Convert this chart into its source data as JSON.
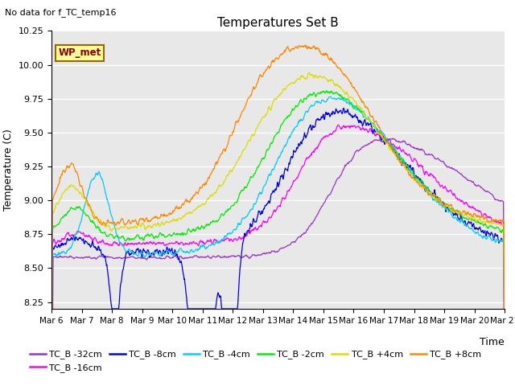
{
  "title": "Temperatures Set B",
  "subtitle": "No data for f_TC_temp16",
  "xlabel": "Time",
  "ylabel": "Temperature (C)",
  "ylim": [
    8.2,
    10.25
  ],
  "legend_box_label": "WP_met",
  "legend_box_color": "#ffff99",
  "legend_box_border": "#996600",
  "legend_box_text_color": "#880000",
  "background_color": "#e8e8e8",
  "series_colors": {
    "TC_B -32cm": "#9933cc",
    "TC_B -16cm": "#ff00ff",
    "TC_B -8cm": "#0000ee",
    "TC_B -4cm": "#00ccff",
    "TC_B -2cm": "#00ee00",
    "TC_B +4cm": "#dddd00",
    "TC_B +8cm": "#ff8800"
  },
  "line_width": 0.9,
  "figsize": [
    6.4,
    4.8
  ],
  "dpi": 100
}
